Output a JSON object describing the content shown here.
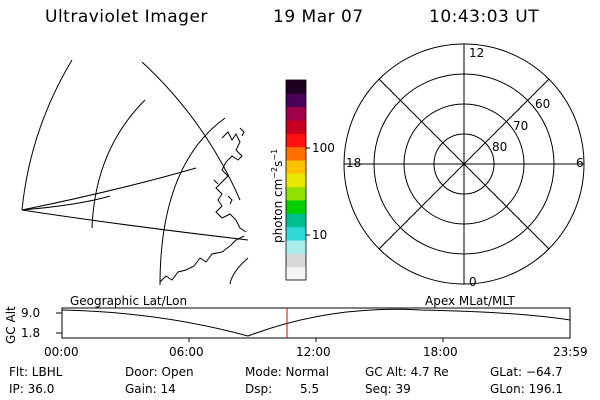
{
  "header": {
    "instrument": "Ultraviolet Imager",
    "date": "19 Mar 07",
    "time": "10:43:03 UT"
  },
  "colorbar": {
    "unit_label": "photon cm",
    "unit_sup1": "−2",
    "unit_mid": "s",
    "unit_sup2": "−1",
    "tick_100": "100",
    "tick_10": "10",
    "colors": [
      "#f4f4f4",
      "#d8d8d8",
      "#a8ecec",
      "#30d8d8",
      "#00c090",
      "#00d000",
      "#90e000",
      "#e8e800",
      "#ffc000",
      "#ff7000",
      "#ff1010",
      "#c80020",
      "#a0004a",
      "#4a0058",
      "#200020"
    ]
  },
  "polar_plot": {
    "mlt_labels": {
      "top": "12",
      "left": "18",
      "right": "6",
      "bottom": "0"
    },
    "lat_labels": [
      "60",
      "70",
      "80"
    ]
  },
  "map_labels": {
    "left_title": "Geographic Lat/Lon",
    "right_title": "Apex MLat/MLT"
  },
  "altitude_plot": {
    "y_label": "GC Alt",
    "y_ticks": [
      "9.0",
      "1.8"
    ],
    "x_ticks": [
      "00:00",
      "06:00",
      "12:00",
      "18:00",
      "23:59"
    ],
    "marker_color": "#e00000"
  },
  "info": {
    "filter": "Flt: LBHL",
    "ip": "IP: 36.0",
    "door": "Door: Open",
    "gain": "Gain: 14",
    "mode": "Mode: Normal",
    "dsp_label": "Dsp:",
    "dsp_value": "5.5",
    "gc_alt": "GC Alt: 4.7 Re",
    "seq": "Seq: 39",
    "glat": "GLat: −64.7",
    "glon": "GLon: 196.1"
  }
}
